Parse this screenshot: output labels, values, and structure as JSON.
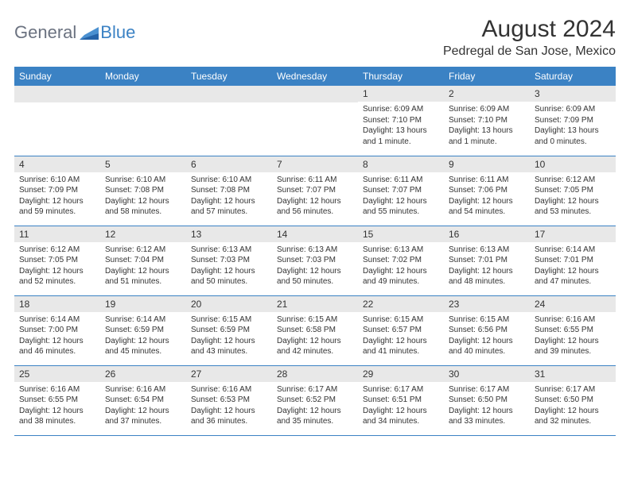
{
  "logo": {
    "general": "General",
    "blue": "Blue"
  },
  "title": "August 2024",
  "location": "Pedregal de San Jose, Mexico",
  "colors": {
    "header_bg": "#3b82c4",
    "header_text": "#ffffff",
    "daynum_bg": "#e8e8e8",
    "border": "#3b82c4",
    "text": "#333333",
    "logo_gray": "#6b7280",
    "logo_blue": "#3b82c4"
  },
  "weekdays": [
    "Sunday",
    "Monday",
    "Tuesday",
    "Wednesday",
    "Thursday",
    "Friday",
    "Saturday"
  ],
  "weeks": [
    [
      null,
      null,
      null,
      null,
      {
        "n": "1",
        "sr": "6:09 AM",
        "ss": "7:10 PM",
        "dl": "13 hours and 1 minute."
      },
      {
        "n": "2",
        "sr": "6:09 AM",
        "ss": "7:10 PM",
        "dl": "13 hours and 1 minute."
      },
      {
        "n": "3",
        "sr": "6:09 AM",
        "ss": "7:09 PM",
        "dl": "13 hours and 0 minutes."
      }
    ],
    [
      {
        "n": "4",
        "sr": "6:10 AM",
        "ss": "7:09 PM",
        "dl": "12 hours and 59 minutes."
      },
      {
        "n": "5",
        "sr": "6:10 AM",
        "ss": "7:08 PM",
        "dl": "12 hours and 58 minutes."
      },
      {
        "n": "6",
        "sr": "6:10 AM",
        "ss": "7:08 PM",
        "dl": "12 hours and 57 minutes."
      },
      {
        "n": "7",
        "sr": "6:11 AM",
        "ss": "7:07 PM",
        "dl": "12 hours and 56 minutes."
      },
      {
        "n": "8",
        "sr": "6:11 AM",
        "ss": "7:07 PM",
        "dl": "12 hours and 55 minutes."
      },
      {
        "n": "9",
        "sr": "6:11 AM",
        "ss": "7:06 PM",
        "dl": "12 hours and 54 minutes."
      },
      {
        "n": "10",
        "sr": "6:12 AM",
        "ss": "7:05 PM",
        "dl": "12 hours and 53 minutes."
      }
    ],
    [
      {
        "n": "11",
        "sr": "6:12 AM",
        "ss": "7:05 PM",
        "dl": "12 hours and 52 minutes."
      },
      {
        "n": "12",
        "sr": "6:12 AM",
        "ss": "7:04 PM",
        "dl": "12 hours and 51 minutes."
      },
      {
        "n": "13",
        "sr": "6:13 AM",
        "ss": "7:03 PM",
        "dl": "12 hours and 50 minutes."
      },
      {
        "n": "14",
        "sr": "6:13 AM",
        "ss": "7:03 PM",
        "dl": "12 hours and 50 minutes."
      },
      {
        "n": "15",
        "sr": "6:13 AM",
        "ss": "7:02 PM",
        "dl": "12 hours and 49 minutes."
      },
      {
        "n": "16",
        "sr": "6:13 AM",
        "ss": "7:01 PM",
        "dl": "12 hours and 48 minutes."
      },
      {
        "n": "17",
        "sr": "6:14 AM",
        "ss": "7:01 PM",
        "dl": "12 hours and 47 minutes."
      }
    ],
    [
      {
        "n": "18",
        "sr": "6:14 AM",
        "ss": "7:00 PM",
        "dl": "12 hours and 46 minutes."
      },
      {
        "n": "19",
        "sr": "6:14 AM",
        "ss": "6:59 PM",
        "dl": "12 hours and 45 minutes."
      },
      {
        "n": "20",
        "sr": "6:15 AM",
        "ss": "6:59 PM",
        "dl": "12 hours and 43 minutes."
      },
      {
        "n": "21",
        "sr": "6:15 AM",
        "ss": "6:58 PM",
        "dl": "12 hours and 42 minutes."
      },
      {
        "n": "22",
        "sr": "6:15 AM",
        "ss": "6:57 PM",
        "dl": "12 hours and 41 minutes."
      },
      {
        "n": "23",
        "sr": "6:15 AM",
        "ss": "6:56 PM",
        "dl": "12 hours and 40 minutes."
      },
      {
        "n": "24",
        "sr": "6:16 AM",
        "ss": "6:55 PM",
        "dl": "12 hours and 39 minutes."
      }
    ],
    [
      {
        "n": "25",
        "sr": "6:16 AM",
        "ss": "6:55 PM",
        "dl": "12 hours and 38 minutes."
      },
      {
        "n": "26",
        "sr": "6:16 AM",
        "ss": "6:54 PM",
        "dl": "12 hours and 37 minutes."
      },
      {
        "n": "27",
        "sr": "6:16 AM",
        "ss": "6:53 PM",
        "dl": "12 hours and 36 minutes."
      },
      {
        "n": "28",
        "sr": "6:17 AM",
        "ss": "6:52 PM",
        "dl": "12 hours and 35 minutes."
      },
      {
        "n": "29",
        "sr": "6:17 AM",
        "ss": "6:51 PM",
        "dl": "12 hours and 34 minutes."
      },
      {
        "n": "30",
        "sr": "6:17 AM",
        "ss": "6:50 PM",
        "dl": "12 hours and 33 minutes."
      },
      {
        "n": "31",
        "sr": "6:17 AM",
        "ss": "6:50 PM",
        "dl": "12 hours and 32 minutes."
      }
    ]
  ],
  "labels": {
    "sunrise": "Sunrise: ",
    "sunset": "Sunset: ",
    "daylight": "Daylight: "
  }
}
